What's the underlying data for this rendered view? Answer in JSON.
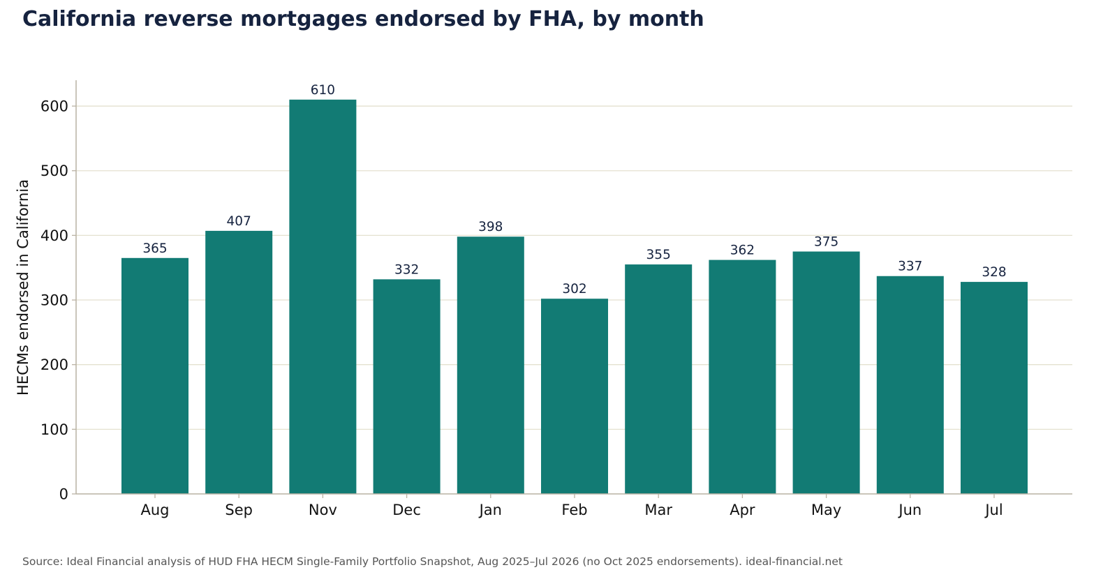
{
  "chart_data": {
    "type": "bar",
    "title": "California reverse mortgages endorsed by FHA, by month",
    "xlabel": "",
    "ylabel": "HECMs endorsed in California",
    "categories": [
      "Aug",
      "Sep",
      "Nov",
      "Dec",
      "Jan",
      "Feb",
      "Mar",
      "Apr",
      "May",
      "Jun",
      "Jul"
    ],
    "values": [
      365,
      407,
      610,
      332,
      398,
      302,
      355,
      362,
      375,
      337,
      328
    ],
    "data_labels": [
      "365",
      "407",
      "610",
      "332",
      "398",
      "302",
      "355",
      "362",
      "375",
      "337",
      "328"
    ],
    "ylim": [
      0,
      640
    ],
    "yticks": [
      0,
      100,
      200,
      300,
      400,
      500,
      600
    ],
    "ytick_labels": [
      "0",
      "100",
      "200",
      "300",
      "400",
      "500",
      "600"
    ],
    "grid": "horizontal",
    "legend": "none",
    "colors": {
      "bar": "#127b74",
      "grid": "#e4e1cf",
      "axis": "#b9b2a3",
      "title": "#16233f"
    }
  },
  "footer": {
    "source": "Source: Ideal Financial analysis of HUD FHA HECM Single-Family Portfolio Snapshot, Aug 2025–Jul 2026 (no Oct 2025 endorsements).  ideal-financial.net"
  }
}
